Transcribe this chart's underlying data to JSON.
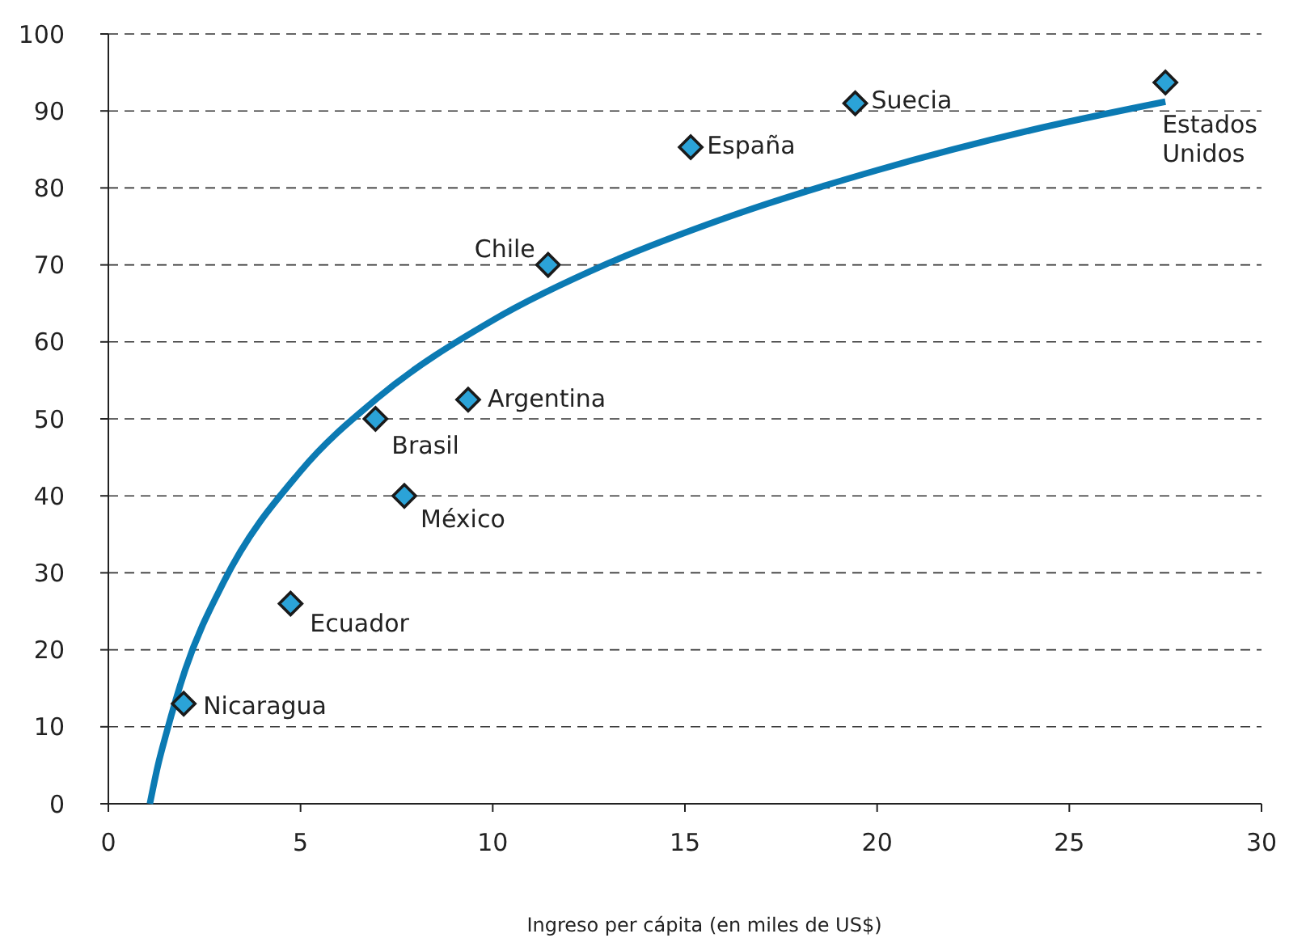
{
  "chart_data": {
    "type": "scatter",
    "xlabel": "Ingreso per cápita (en miles de US$)",
    "xlim": [
      0,
      30
    ],
    "xticks": [
      0,
      5,
      10,
      15,
      20,
      25,
      30
    ],
    "ylim": [
      0,
      100
    ],
    "yticks": [
      0,
      10,
      20,
      30,
      40,
      50,
      60,
      70,
      80,
      90,
      100
    ],
    "grid": "y",
    "marker": "diamond",
    "series": [
      {
        "color": "#2ba3d8",
        "x": [
          1.96,
          4.74,
          6.95,
          7.7,
          9.36,
          11.44,
          15.15,
          19.43,
          27.5
        ],
        "values": [
          13,
          26,
          50,
          40,
          52.5,
          70,
          85.3,
          91,
          93.7
        ]
      },
      {
        "type": "line",
        "color": "#0b7ab3",
        "line_style": "solid",
        "marker": "none",
        "x": [
          1.08,
          1.3,
          1.5,
          2,
          3,
          5,
          7,
          10,
          13,
          16,
          20,
          24,
          27.5
        ],
        "values": [
          0,
          5.2,
          9,
          17.4,
          28.8,
          43.2,
          52.7,
          62.8,
          70.2,
          76,
          82.3,
          87.5,
          91.2
        ]
      }
    ],
    "annotations": [
      {
        "text": "Nicaragua",
        "x": 1.96,
        "y": 13
      },
      {
        "text": "Ecuador",
        "x": 4.74,
        "y": 26
      },
      {
        "text": "Brasil",
        "x": 6.95,
        "y": 50
      },
      {
        "text": "México",
        "x": 7.7,
        "y": 40
      },
      {
        "text": "Argentina",
        "x": 9.36,
        "y": 52.5
      },
      {
        "text": "Chile",
        "x": 11.44,
        "y": 70
      },
      {
        "text": "España",
        "x": 15.15,
        "y": 85.3
      },
      {
        "text": "Suecia",
        "x": 19.43,
        "y": 91
      },
      {
        "text": "Estados Unidos",
        "x": 27.5,
        "y": 93.7
      }
    ]
  }
}
